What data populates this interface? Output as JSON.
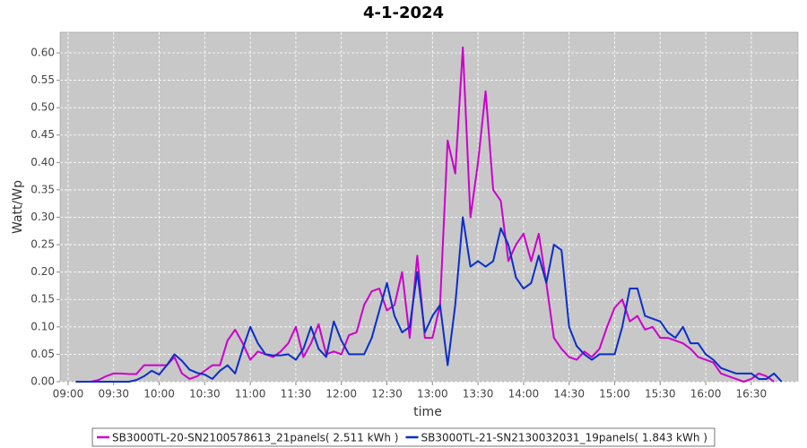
{
  "chart_data": {
    "type": "line",
    "title": "4-1-2024",
    "x_label": "time",
    "y_label": "Watt/Wp",
    "x": [
      545,
      550,
      555,
      560,
      565,
      570,
      575,
      580,
      585,
      590,
      595,
      600,
      605,
      610,
      615,
      620,
      625,
      630,
      635,
      640,
      645,
      650,
      655,
      660,
      665,
      670,
      675,
      680,
      685,
      690,
      695,
      700,
      705,
      710,
      715,
      720,
      725,
      730,
      735,
      740,
      745,
      750,
      755,
      760,
      765,
      770,
      775,
      780,
      785,
      790,
      795,
      800,
      805,
      810,
      815,
      820,
      825,
      830,
      835,
      840,
      845,
      850,
      855,
      860,
      865,
      870,
      875,
      880,
      885,
      890,
      895,
      900,
      905,
      910,
      915,
      920,
      925,
      930,
      935,
      940,
      945,
      950,
      955,
      960,
      965,
      970,
      975,
      980,
      985,
      990,
      995,
      1000,
      1005,
      1010
    ],
    "series": [
      {
        "name": "SB3000TL-20-SN2100578613_21panels( 2.511 kWh )",
        "color": "#cc00cc",
        "values": [
          0,
          0,
          0,
          0.003,
          0.01,
          0.015,
          0.015,
          0.014,
          0.014,
          0.03,
          0.03,
          0.03,
          0.03,
          0.045,
          0.015,
          0.005,
          0.01,
          0.02,
          0.03,
          0.03,
          0.075,
          0.095,
          0.07,
          0.04,
          0.055,
          0.05,
          0.045,
          0.055,
          0.07,
          0.1,
          0.045,
          0.07,
          0.105,
          0.05,
          0.055,
          0.05,
          0.085,
          0.09,
          0.14,
          0.165,
          0.17,
          0.13,
          0.14,
          0.2,
          0.08,
          0.23,
          0.08,
          0.08,
          0.14,
          0.44,
          0.38,
          0.61,
          0.3,
          0.4,
          0.53,
          0.35,
          0.33,
          0.22,
          0.25,
          0.27,
          0.22,
          0.27,
          0.18,
          0.08,
          0.06,
          0.045,
          0.04,
          0.055,
          0.045,
          0.06,
          0.1,
          0.135,
          0.15,
          0.11,
          0.12,
          0.095,
          0.1,
          0.08,
          0.08,
          0.075,
          0.07,
          0.06,
          0.045,
          0.04,
          0.035,
          0.015,
          0.01,
          0.005,
          0,
          0.005,
          0.015,
          0.01,
          0,
          null
        ]
      },
      {
        "name": "SB3000TL-21-SN2130032031_19panels( 1.843 kWh )",
        "color": "#0a2fc8",
        "values": [
          0,
          0,
          0,
          0,
          0,
          0,
          0,
          0,
          0.003,
          0.01,
          0.02,
          0.013,
          0.03,
          0.05,
          0.038,
          0.022,
          0.016,
          0.013,
          0.005,
          0.02,
          0.03,
          0.015,
          0.06,
          0.1,
          0.07,
          0.05,
          0.048,
          0.048,
          0.05,
          0.04,
          0.06,
          0.1,
          0.06,
          0.045,
          0.11,
          0.075,
          0.05,
          0.05,
          0.05,
          0.08,
          0.13,
          0.18,
          0.12,
          0.09,
          0.1,
          0.2,
          0.09,
          0.12,
          0.14,
          0.03,
          0.14,
          0.3,
          0.21,
          0.22,
          0.21,
          0.22,
          0.28,
          0.25,
          0.19,
          0.17,
          0.18,
          0.23,
          0.18,
          0.25,
          0.24,
          0.1,
          0.065,
          0.05,
          0.04,
          0.05,
          0.05,
          0.05,
          0.1,
          0.17,
          0.17,
          0.12,
          0.115,
          0.11,
          0.09,
          0.08,
          0.1,
          0.07,
          0.07,
          0.05,
          0.04,
          0.025,
          0.02,
          0.015,
          0.015,
          0.015,
          0.005,
          0.005,
          0.015,
          0
        ]
      }
    ],
    "xlim": [
      534.7,
      1020.8
    ],
    "xticks": [
      {
        "value": 540,
        "label": "09:00"
      },
      {
        "value": 570,
        "label": "09:30"
      },
      {
        "value": 600,
        "label": "10:00"
      },
      {
        "value": 630,
        "label": "10:30"
      },
      {
        "value": 660,
        "label": "11:00"
      },
      {
        "value": 690,
        "label": "11:30"
      },
      {
        "value": 720,
        "label": "12:00"
      },
      {
        "value": 750,
        "label": "12:30"
      },
      {
        "value": 780,
        "label": "13:00"
      },
      {
        "value": 810,
        "label": "13:30"
      },
      {
        "value": 840,
        "label": "14:00"
      },
      {
        "value": 870,
        "label": "14:30"
      },
      {
        "value": 900,
        "label": "15:00"
      },
      {
        "value": 930,
        "label": "15:30"
      },
      {
        "value": 960,
        "label": "16:00"
      },
      {
        "value": 990,
        "label": "16:30"
      }
    ],
    "ylim": [
      0,
      0.6376
    ],
    "yticks": [
      {
        "value": 0,
        "label": "0.00"
      },
      {
        "value": 0.05,
        "label": "0.05"
      },
      {
        "value": 0.1,
        "label": "0.10"
      },
      {
        "value": 0.15,
        "label": "0.15"
      },
      {
        "value": 0.2,
        "label": "0.20"
      },
      {
        "value": 0.25,
        "label": "0.25"
      },
      {
        "value": 0.3,
        "label": "0.30"
      },
      {
        "value": 0.35,
        "label": "0.35"
      },
      {
        "value": 0.4,
        "label": "0.40"
      },
      {
        "value": 0.45,
        "label": "0.45"
      },
      {
        "value": 0.5,
        "label": "0.50"
      },
      {
        "value": 0.55,
        "label": "0.55"
      },
      {
        "value": 0.6,
        "label": "0.60"
      }
    ],
    "grid": true,
    "legend": "bottom"
  }
}
